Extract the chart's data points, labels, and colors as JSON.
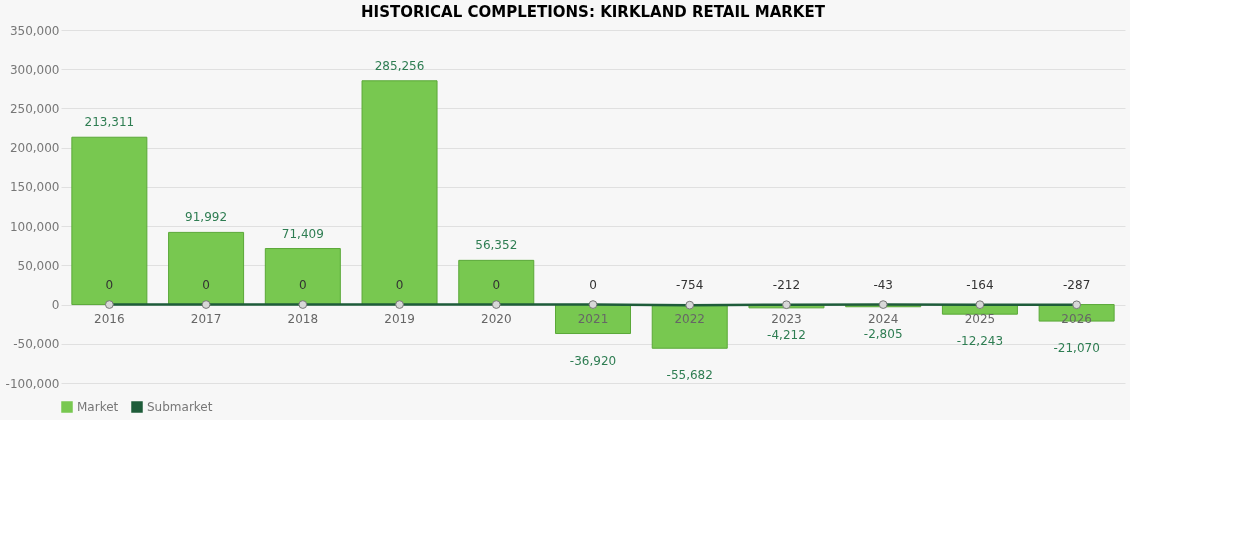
{
  "chart_data": {
    "type": "bar",
    "title": "HISTORICAL COMPLETIONS: KIRKLAND RETAIL MARKET",
    "categories": [
      "2016",
      "2017",
      "2018",
      "2019",
      "2020",
      "2021",
      "2022",
      "2023",
      "2024",
      "2025",
      "2026"
    ],
    "series": [
      {
        "name": "Market",
        "color": "#78c850",
        "values": [
          213311,
          91992,
          71409,
          285256,
          56352,
          -36920,
          -55682,
          -4212,
          -2805,
          -12243,
          -21070
        ],
        "value_labels": [
          "213,311",
          "91,992",
          "71,409",
          "285,256",
          "56,352",
          "-36,920",
          "-55,682",
          "-4,212",
          "-2,805",
          "-12,243",
          "-21,070"
        ]
      },
      {
        "name": "Submarket",
        "type": "line",
        "color": "#1e5c3a",
        "values": [
          0,
          0,
          0,
          0,
          0,
          0,
          -754,
          -212,
          -43,
          -164,
          -287
        ],
        "value_labels": [
          "0",
          "0",
          "0",
          "0",
          "0",
          "0",
          "-754",
          "-212",
          "-43",
          "-164",
          "-287"
        ]
      }
    ],
    "ylim": [
      -100000,
      350000
    ],
    "yticks": [
      {
        "value": -100000,
        "label": "-100,000"
      },
      {
        "value": -50000,
        "label": "-50,000"
      },
      0,
      {
        "value": 50000,
        "label": "50,000"
      },
      {
        "value": 100000,
        "label": "100,000"
      },
      {
        "value": 150000,
        "label": "150,000"
      },
      {
        "value": 200000,
        "label": "200,000"
      },
      {
        "value": 250000,
        "label": "250,000"
      },
      {
        "value": 300000,
        "label": "300,000"
      },
      {
        "value": 350000,
        "label": "350,000"
      }
    ],
    "grid": "y",
    "legend": "bottom",
    "marker": "circle"
  }
}
